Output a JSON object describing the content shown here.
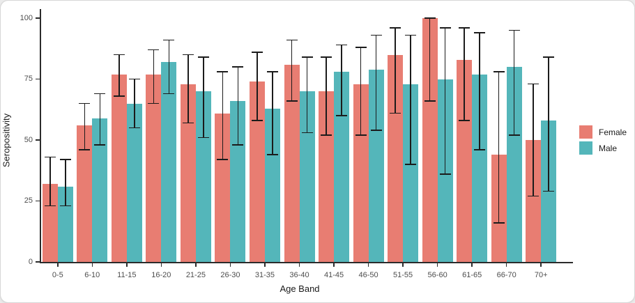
{
  "chart_data": {
    "type": "bar",
    "title": "",
    "xlabel": "Age Band",
    "ylabel": "Seropositivity",
    "ylim": [
      0,
      100
    ],
    "yticks": [
      "0",
      "25",
      "50",
      "75",
      "100"
    ],
    "grid": false,
    "legend_position": "right",
    "error_bars": true,
    "error_bar_color": "#1b1b1b",
    "axis_color": "#2b2b2b",
    "categories": [
      "0-5",
      "6-10",
      "11-15",
      "16-20",
      "21-25",
      "26-30",
      "31-35",
      "36-40",
      "41-45",
      "46-50",
      "51-55",
      "56-60",
      "61-65",
      "66-70",
      "70+"
    ],
    "series": [
      {
        "name": "Female",
        "color": "#E87D72",
        "values": [
          32,
          56,
          77,
          77,
          73,
          61,
          74,
          81,
          70,
          73,
          85,
          100,
          83,
          44,
          50
        ],
        "error_low": [
          23,
          46,
          68,
          65,
          57,
          42,
          58,
          66,
          52,
          52,
          61,
          66,
          58,
          16,
          27
        ],
        "error_high": [
          43,
          65,
          85,
          87,
          85,
          78,
          86,
          91,
          84,
          88,
          96,
          100,
          96,
          78,
          73
        ]
      },
      {
        "name": "Male",
        "color": "#54B6BA",
        "values": [
          31,
          59,
          65,
          82,
          70,
          66,
          63,
          70,
          78,
          79,
          73,
          75,
          77,
          80,
          58
        ],
        "error_low": [
          23,
          48,
          55,
          69,
          51,
          48,
          44,
          53,
          60,
          54,
          40,
          36,
          46,
          52,
          29
        ],
        "error_high": [
          42,
          69,
          75,
          91,
          84,
          80,
          78,
          84,
          89,
          93,
          93,
          96,
          94,
          95,
          84
        ]
      }
    ]
  },
  "legend": {
    "items": [
      {
        "label": "Female",
        "color": "#E87D72"
      },
      {
        "label": "Male",
        "color": "#54B6BA"
      }
    ]
  }
}
